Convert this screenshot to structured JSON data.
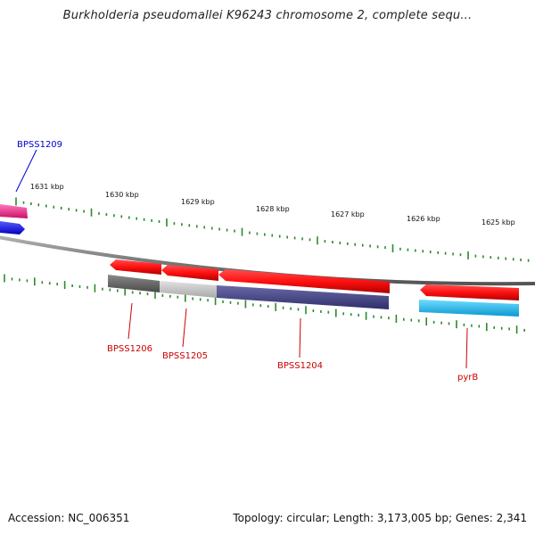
{
  "title": "Burkholderia pseudomallei K96243 chromosome 2, complete sequ...",
  "footer": {
    "accession": "Accession: NC_006351",
    "topology": "Topology: circular; Length: 3,173,005 bp; Genes: 2,341"
  },
  "scale_labels": [
    "1631 kbp",
    "1630 kbp",
    "1629 kbp",
    "1628 kbp",
    "1627 kbp",
    "1626 kbp",
    "1625 kbp"
  ],
  "gene_labels": [
    "BPSS1209",
    "BPSS1206",
    "BPSS1205",
    "BPSS1204",
    "pyrB"
  ],
  "colors": {
    "backbone": "#888888",
    "tick": "#2a8a2a",
    "gene_red": "#ff1a1a",
    "label_red": "#cc0000",
    "label_blue": "#0000cc",
    "magenta": "#e8278a",
    "blue": "#1a1aff",
    "dark_gray": "#666666",
    "light_gray": "#c8c8c8",
    "navy": "#4a4a8a",
    "cyan": "#1ab8ee"
  }
}
